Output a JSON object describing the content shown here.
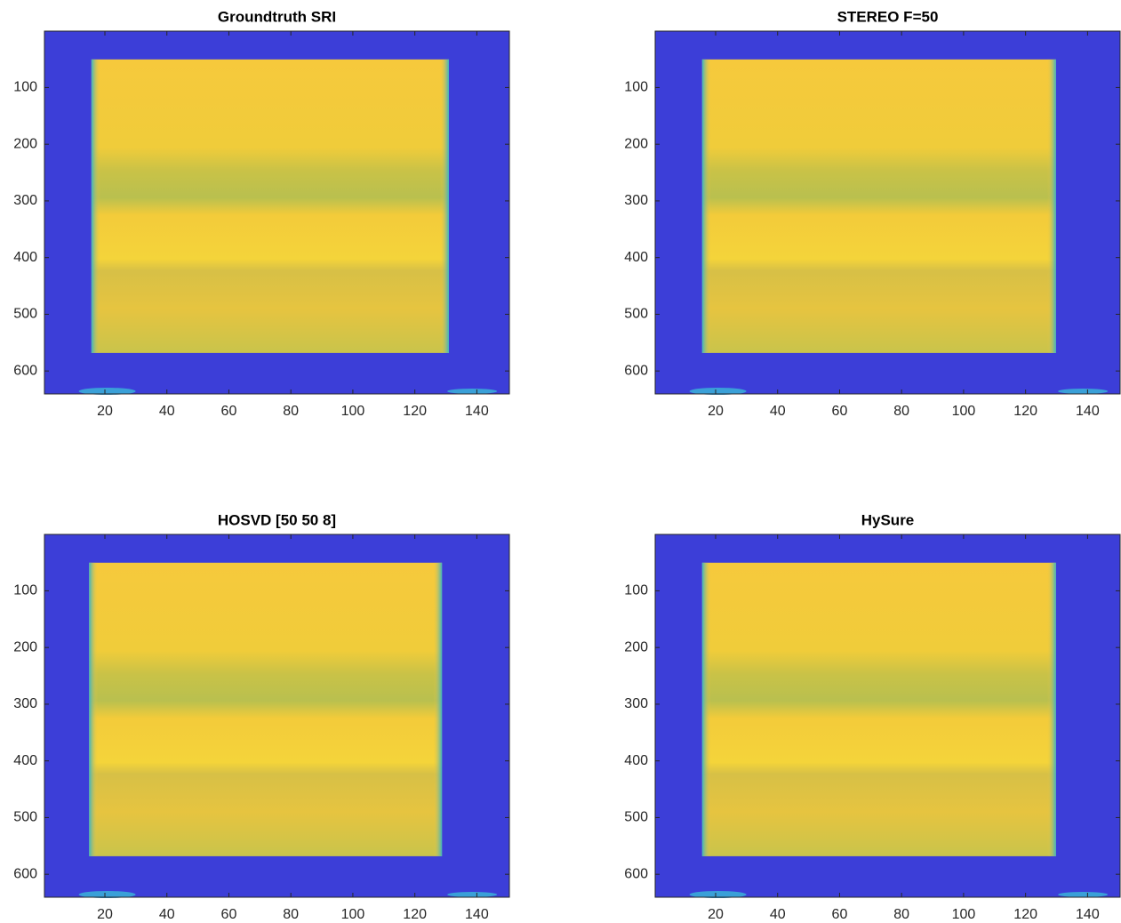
{
  "chart_data": [
    {
      "type": "image",
      "title": "Groundtruth SRI",
      "xlim": [
        0.5,
        150.5
      ],
      "ylim": [
        0.5,
        640.5
      ],
      "xticks": [
        20,
        40,
        60,
        80,
        100,
        120,
        140
      ],
      "yticks": [
        100,
        200,
        300,
        400,
        500,
        600
      ]
    },
    {
      "type": "image",
      "title": "STEREO F=50",
      "xlim": [
        0.5,
        150.5
      ],
      "ylim": [
        0.5,
        640.5
      ],
      "xticks": [
        20,
        40,
        60,
        80,
        100,
        120,
        140
      ],
      "yticks": [
        100,
        200,
        300,
        400,
        500,
        600
      ]
    },
    {
      "type": "image",
      "title": "HOSVD [50 50 8]",
      "xlim": [
        0.5,
        150.5
      ],
      "ylim": [
        0.5,
        640.5
      ],
      "xticks": [
        20,
        40,
        60,
        80,
        100,
        120,
        140
      ],
      "yticks": [
        100,
        200,
        300,
        400,
        500,
        600
      ]
    },
    {
      "type": "image",
      "title": "HySure",
      "xlim": [
        0.5,
        150.5
      ],
      "ylim": [
        0.5,
        640.5
      ],
      "xticks": [
        20,
        40,
        60,
        80,
        100,
        120,
        140
      ],
      "yticks": [
        100,
        200,
        300,
        400,
        500,
        600
      ]
    }
  ]
}
